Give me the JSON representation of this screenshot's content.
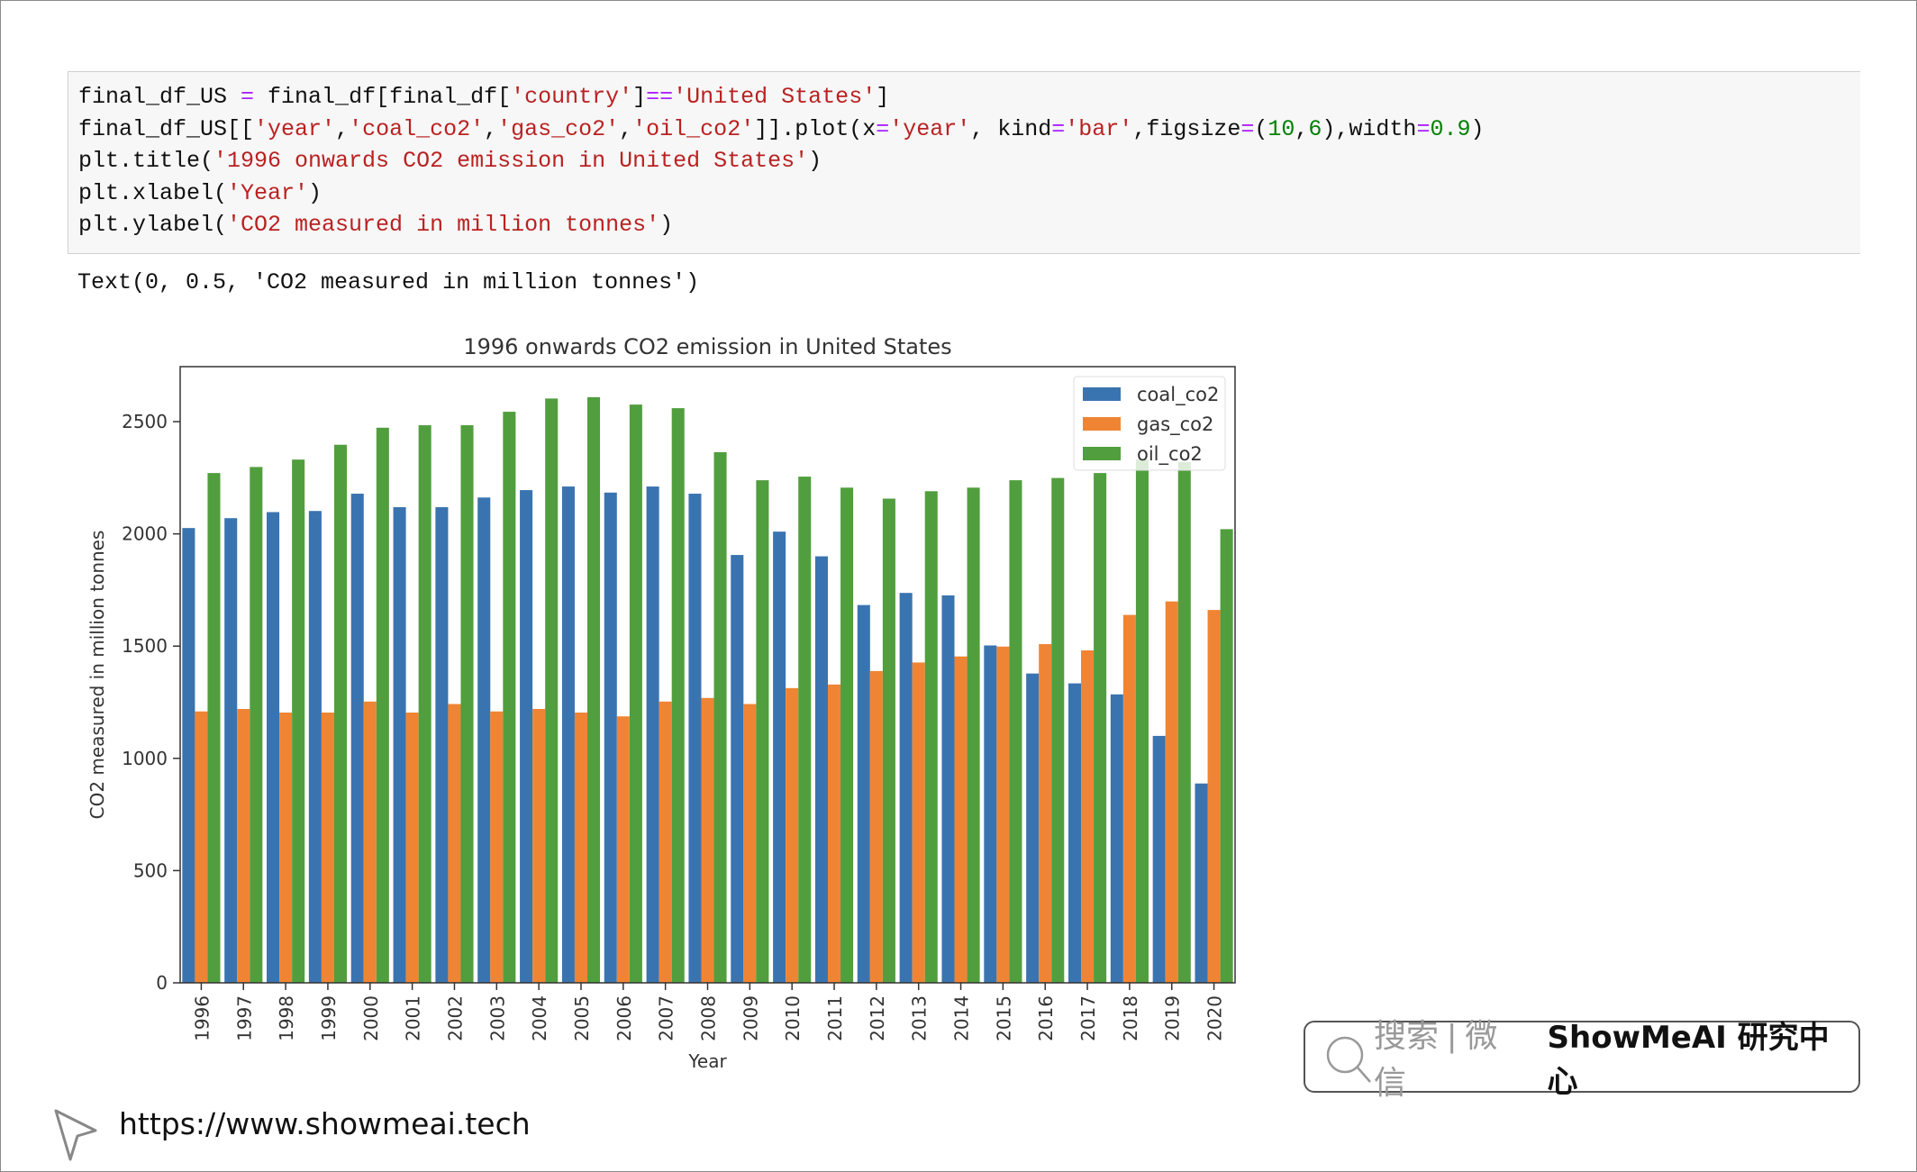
{
  "code_cell": {
    "lines": [
      [
        [
          "final_df_US ",
          ""
        ],
        [
          "=",
          "op"
        ],
        [
          " final_df[final_df[",
          ""
        ],
        [
          "'country'",
          "str"
        ],
        [
          "]",
          ""
        ],
        [
          "==",
          "op"
        ],
        [
          "'United States'",
          "str"
        ],
        [
          "]",
          ""
        ]
      ],
      [
        [
          "final_df_US[[",
          ""
        ],
        [
          "'year'",
          "str"
        ],
        [
          ",",
          ""
        ],
        [
          "'coal_co2'",
          "str"
        ],
        [
          ",",
          ""
        ],
        [
          "'gas_co2'",
          "str"
        ],
        [
          ",",
          ""
        ],
        [
          "'oil_co2'",
          "str"
        ],
        [
          "]].plot(x",
          ""
        ],
        [
          "=",
          "op"
        ],
        [
          "'year'",
          "str"
        ],
        [
          ", kind",
          ""
        ],
        [
          "=",
          "op"
        ],
        [
          "'bar'",
          "str"
        ],
        [
          ",figsize",
          ""
        ],
        [
          "=",
          "op"
        ],
        [
          "(",
          ""
        ],
        [
          "10",
          "num"
        ],
        [
          ",",
          ""
        ],
        [
          "6",
          "num"
        ],
        [
          "),width",
          ""
        ],
        [
          "=",
          "op"
        ],
        [
          "0.9",
          "num"
        ],
        [
          ")",
          ""
        ]
      ],
      [
        [
          "plt.title(",
          ""
        ],
        [
          "'1996 onwards CO2 emission in United States'",
          "str"
        ],
        [
          ")",
          ""
        ]
      ],
      [
        [
          "plt.xlabel(",
          ""
        ],
        [
          "'Year'",
          "str"
        ],
        [
          ")",
          ""
        ]
      ],
      [
        [
          "plt.ylabel(",
          ""
        ],
        [
          "'CO2 measured in million tonnes'",
          "str"
        ],
        [
          ")",
          ""
        ]
      ]
    ]
  },
  "output_text": "Text(0, 0.5, 'CO2 measured in million tonnes')",
  "chart_data": {
    "type": "bar",
    "title": "1996 onwards CO2 emission in United States",
    "xlabel": "Year",
    "ylabel": "CO2 measured in million tonnes",
    "ylim": [
      0,
      2745
    ],
    "yticks": [
      0,
      500,
      1000,
      1500,
      2000,
      2500
    ],
    "grid": false,
    "legend_placement": "top-right",
    "categories": [
      "1996",
      "1997",
      "1998",
      "1999",
      "2000",
      "2001",
      "2002",
      "2003",
      "2004",
      "2005",
      "2006",
      "2007",
      "2008",
      "2009",
      "2010",
      "2011",
      "2012",
      "2013",
      "2014",
      "2015",
      "2016",
      "2017",
      "2018",
      "2019",
      "2020"
    ],
    "series": [
      {
        "name": "coal_co2",
        "color": "#3a74b0",
        "values": [
          2026,
          2070,
          2097,
          2102,
          2179,
          2119,
          2119,
          2162,
          2195,
          2211,
          2184,
          2211,
          2179,
          1906,
          2010,
          1900,
          1683,
          1737,
          1726,
          1503,
          1378,
          1334,
          1285,
          1100,
          888
        ]
      },
      {
        "name": "gas_co2",
        "color": "#ef8534",
        "values": [
          1209,
          1220,
          1204,
          1204,
          1253,
          1204,
          1242,
          1209,
          1220,
          1204,
          1187,
          1253,
          1269,
          1242,
          1313,
          1329,
          1389,
          1427,
          1454,
          1498,
          1509,
          1481,
          1639,
          1699,
          1661
        ]
      },
      {
        "name": "oil_co2",
        "color": "#519e3e",
        "values": [
          2271,
          2298,
          2331,
          2397,
          2473,
          2484,
          2484,
          2544,
          2603,
          2609,
          2576,
          2560,
          2364,
          2239,
          2255,
          2206,
          2157,
          2190,
          2206,
          2239,
          2249,
          2271,
          2331,
          2320,
          2021
        ]
      }
    ]
  },
  "watermark": {
    "search_text": "搜索 | 微信",
    "brand": "ShowMeAI 研究中心",
    "icon": "search-icon"
  },
  "footer": {
    "url": "https://www.showmeai.tech",
    "icon": "cursor-pointer-icon"
  }
}
